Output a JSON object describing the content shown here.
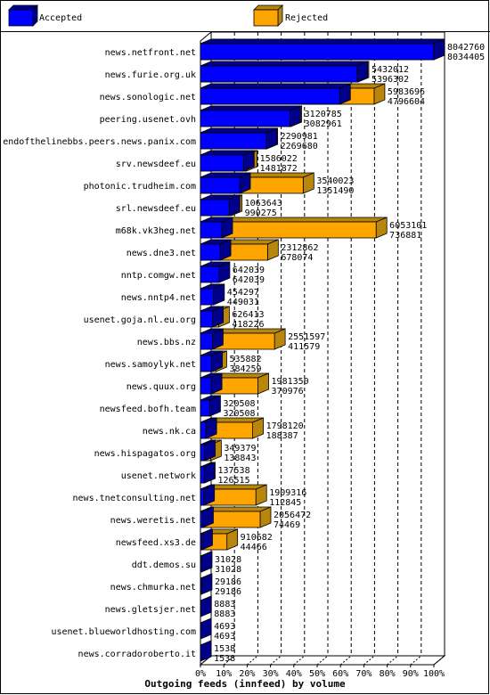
{
  "chart_data": {
    "type": "bar",
    "orientation": "horizontal",
    "stacked": false,
    "xlabel": "Outgoing feeds (innfeed) by volume",
    "ticks": [
      "0%",
      "10%",
      "20%",
      "30%",
      "40%",
      "50%",
      "60%",
      "70%",
      "80%",
      "90%",
      "100%"
    ],
    "xlim": [
      0,
      8042760
    ],
    "grid": true,
    "legend_position": "top",
    "series": [
      {
        "name": "Accepted",
        "color": "#0000ff"
      },
      {
        "name": "Rejected",
        "color": "#ffa500"
      }
    ],
    "categories": [
      "news.netfront.net",
      "news.furie.org.uk",
      "news.sonologic.net",
      "peering.usenet.ovh",
      "endofthelinebbs.peers.news.panix.com",
      "srv.newsdeef.eu",
      "photonic.trudheim.com",
      "srl.newsdeef.eu",
      "m68k.vk3heg.net",
      "news.dne3.net",
      "nntp.comgw.net",
      "news.nntp4.net",
      "usenet.goja.nl.eu.org",
      "news.bbs.nz",
      "news.samoylyk.net",
      "news.quux.org",
      "newsfeed.bofh.team",
      "news.nk.ca",
      "news.hispagatos.org",
      "usenet.network",
      "news.tnetconsulting.net",
      "news.weretis.net",
      "newsfeed.xs3.de",
      "ddt.demos.su",
      "news.chmurka.net",
      "news.gletsjer.net",
      "usenet.blueworldhosting.com",
      "news.corradoroberto.it"
    ],
    "totals": [
      8042760,
      5432012,
      5983696,
      3120785,
      2290981,
      1586022,
      3540023,
      1063643,
      6053101,
      2312862,
      642039,
      454297,
      626413,
      2551597,
      535882,
      1981350,
      320508,
      1798120,
      349379,
      137538,
      1909316,
      2056472,
      910682,
      31028,
      29186,
      8883,
      4693,
      1538
    ],
    "accepted": [
      8034405,
      5396302,
      4796604,
      3082961,
      2269680,
      1481872,
      1351490,
      990275,
      736881,
      678074,
      642039,
      449031,
      418226,
      411579,
      384259,
      370976,
      320508,
      188387,
      138843,
      126515,
      112845,
      74469,
      44466,
      31028,
      29186,
      8883,
      4693,
      1538
    ]
  }
}
